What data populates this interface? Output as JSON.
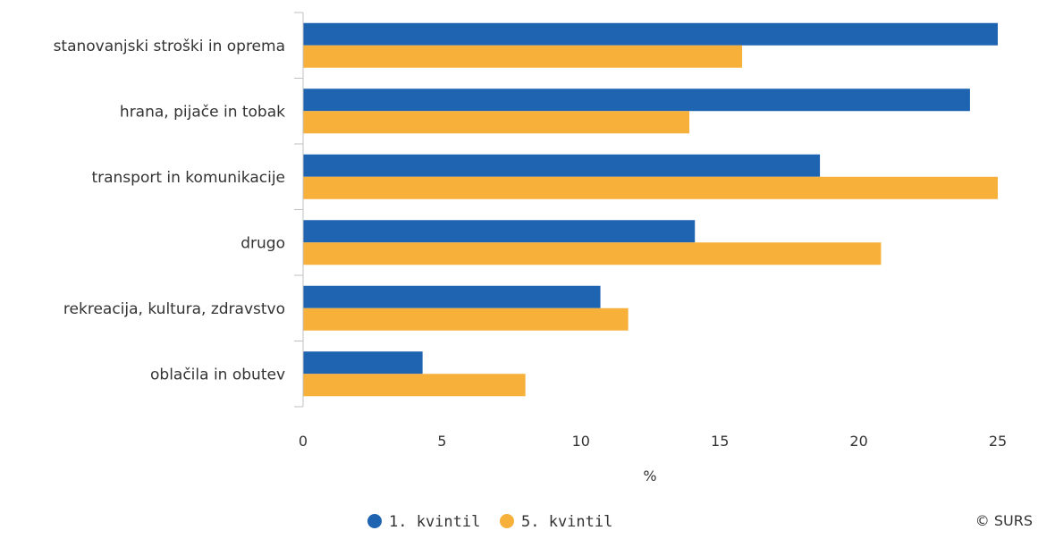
{
  "chart_data": {
    "type": "bar",
    "orientation": "horizontal",
    "categories": [
      "stanovanjski stroški in oprema",
      "hrana, pijače in tobak",
      "transport in komunikacije",
      "drugo",
      "rekreacija, kultura, zdravstvo",
      "oblačila in obutev"
    ],
    "series": [
      {
        "name": "1. kvintil",
        "color": "#1f64b0",
        "values": [
          25.0,
          24.0,
          18.6,
          14.1,
          10.7,
          4.3
        ]
      },
      {
        "name": "5. kvintil",
        "color": "#f7b03a",
        "values": [
          15.8,
          13.9,
          25.0,
          20.8,
          11.7,
          8.0
        ]
      }
    ],
    "xlabel": "%",
    "ylabel": "",
    "xlim": [
      0,
      25
    ],
    "xticks": [
      "0",
      "5",
      "10",
      "15",
      "20",
      "25"
    ],
    "grid": false,
    "legend_position": "bottom-center"
  },
  "credit": "© SURS"
}
